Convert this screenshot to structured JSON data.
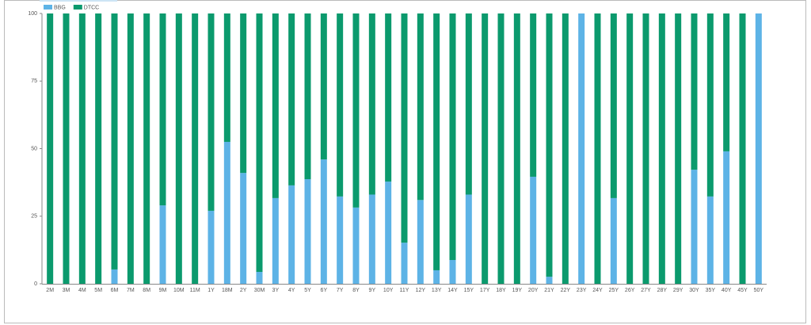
{
  "chart_data": {
    "type": "stacked_bar",
    "categories": [
      "2M",
      "3M",
      "4M",
      "5M",
      "6M",
      "7M",
      "8M",
      "9M",
      "10M",
      "11M",
      "1Y",
      "18M",
      "2Y",
      "30M",
      "3Y",
      "4Y",
      "5Y",
      "6Y",
      "7Y",
      "8Y",
      "9Y",
      "10Y",
      "11Y",
      "12Y",
      "13Y",
      "14Y",
      "15Y",
      "17Y",
      "18Y",
      "19Y",
      "20Y",
      "21Y",
      "22Y",
      "23Y",
      "24Y",
      "25Y",
      "26Y",
      "27Y",
      "28Y",
      "29Y",
      "30Y",
      "35Y",
      "40Y",
      "45Y",
      "50Y"
    ],
    "series": [
      {
        "name": "BBG",
        "color": "#5db3e6",
        "values": [
          0,
          0,
          0,
          0,
          5.3,
          0,
          0,
          29,
          0,
          0,
          27,
          52.5,
          41,
          4.4,
          31.7,
          36.4,
          38.7,
          46,
          32.3,
          28.2,
          33,
          37.8,
          15.2,
          31,
          5,
          8.8,
          33,
          0,
          0,
          0,
          39.6,
          2.6,
          0,
          100,
          0,
          31.7,
          0,
          0,
          0,
          0,
          42.2,
          32.3,
          49,
          0,
          100
        ]
      },
      {
        "name": "DTCC",
        "color": "#0b9a6d",
        "values": [
          100,
          100,
          100,
          100,
          94.7,
          100,
          100,
          71,
          100,
          100,
          73,
          47.5,
          59,
          95.6,
          68.3,
          63.6,
          61.3,
          54,
          67.7,
          71.8,
          67,
          62.2,
          84.8,
          69,
          95,
          91.2,
          67,
          100,
          100,
          100,
          60.4,
          97.4,
          100,
          0,
          100,
          68.3,
          100,
          100,
          100,
          100,
          57.8,
          67.7,
          51,
          100,
          0
        ]
      }
    ],
    "ylim": [
      0,
      100
    ],
    "yticks": [
      0,
      25,
      50,
      75,
      100
    ]
  }
}
